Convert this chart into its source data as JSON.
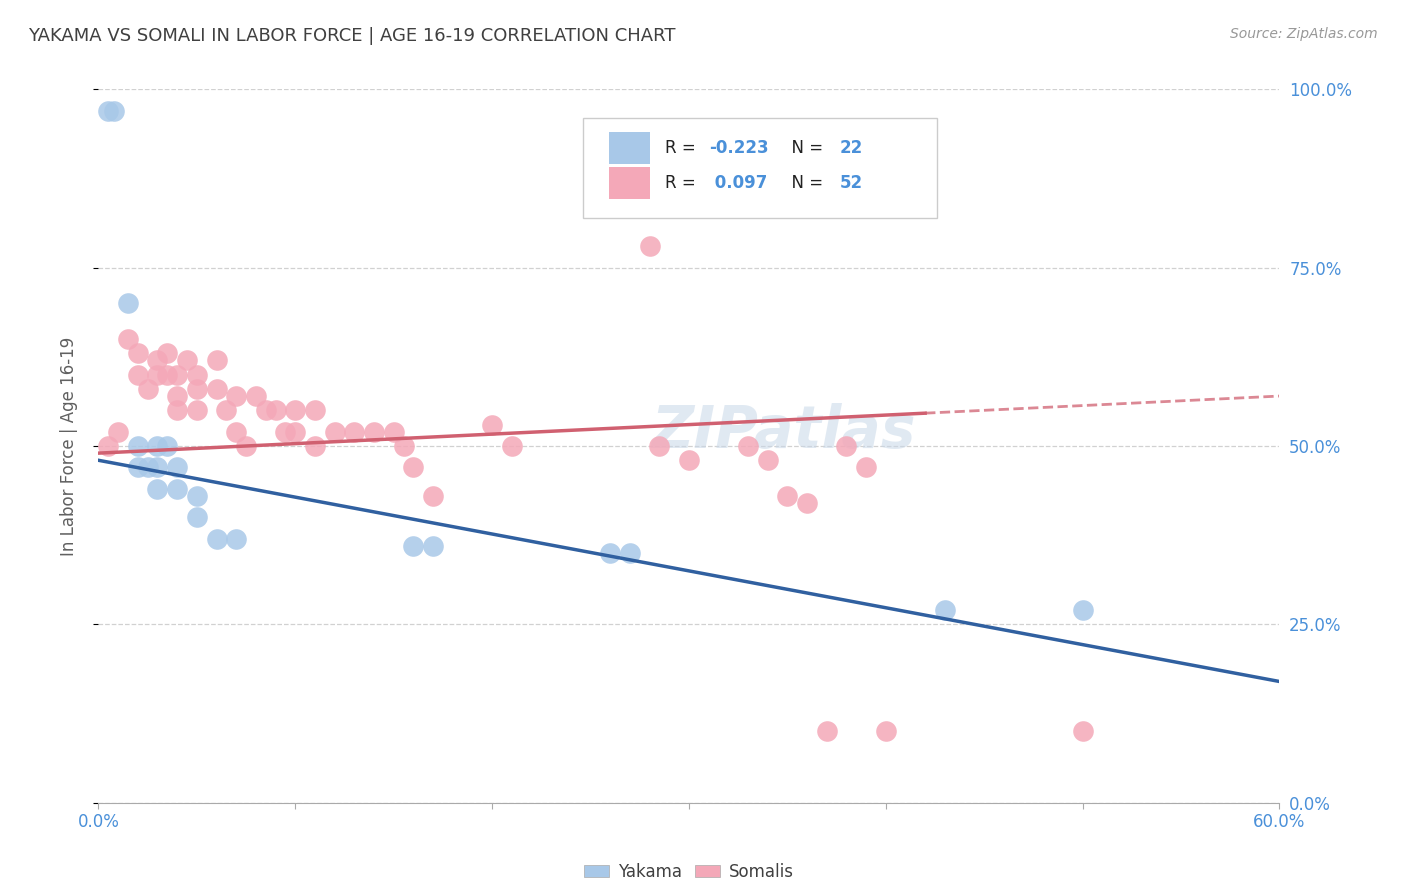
{
  "title": "YAKAMA VS SOMALI IN LABOR FORCE | AGE 16-19 CORRELATION CHART",
  "source_text": "Source: ZipAtlas.com",
  "ylabel": "In Labor Force | Age 16-19",
  "xlim": [
    0.0,
    0.6
  ],
  "ylim": [
    0.0,
    1.0
  ],
  "ytick_values": [
    0.0,
    0.25,
    0.5,
    0.75,
    1.0
  ],
  "ytick_labels": [
    "0.0%",
    "25.0%",
    "50.0%",
    "75.0%",
    "100.0%"
  ],
  "xtick_positions": [
    0.0,
    0.1,
    0.2,
    0.3,
    0.4,
    0.5,
    0.6
  ],
  "watermark": "ZIPatlas",
  "yakama_color": "#a8c8e8",
  "somali_color": "#f4a8b8",
  "trend_yakama_color": "#3060a0",
  "trend_somali_color": "#d06070",
  "background_color": "#ffffff",
  "grid_color": "#cccccc",
  "axis_label_color": "#4a90d9",
  "ylabel_color": "#606060",
  "title_color": "#404040",
  "source_color": "#999999",
  "watermark_color": "#c8d8e8",
  "legend_r_color": "#000000",
  "legend_n_color": "#4a90d9",
  "yakama_x": [
    0.005,
    0.008,
    0.015,
    0.02,
    0.02,
    0.025,
    0.03,
    0.03,
    0.03,
    0.035,
    0.04,
    0.04,
    0.05,
    0.05,
    0.06,
    0.07,
    0.16,
    0.17,
    0.26,
    0.27,
    0.43,
    0.5
  ],
  "yakama_y": [
    0.97,
    0.97,
    0.7,
    0.5,
    0.47,
    0.47,
    0.5,
    0.47,
    0.44,
    0.5,
    0.47,
    0.44,
    0.43,
    0.4,
    0.37,
    0.37,
    0.36,
    0.36,
    0.35,
    0.35,
    0.27,
    0.27
  ],
  "somali_x": [
    0.005,
    0.01,
    0.015,
    0.02,
    0.02,
    0.025,
    0.03,
    0.03,
    0.035,
    0.035,
    0.04,
    0.04,
    0.04,
    0.045,
    0.05,
    0.05,
    0.05,
    0.06,
    0.06,
    0.065,
    0.07,
    0.07,
    0.075,
    0.08,
    0.085,
    0.09,
    0.095,
    0.1,
    0.1,
    0.11,
    0.11,
    0.12,
    0.13,
    0.14,
    0.15,
    0.155,
    0.16,
    0.17,
    0.2,
    0.21,
    0.28,
    0.285,
    0.3,
    0.33,
    0.34,
    0.35,
    0.36,
    0.37,
    0.38,
    0.39,
    0.4,
    0.5
  ],
  "somali_y": [
    0.5,
    0.52,
    0.65,
    0.63,
    0.6,
    0.58,
    0.62,
    0.6,
    0.63,
    0.6,
    0.6,
    0.57,
    0.55,
    0.62,
    0.6,
    0.58,
    0.55,
    0.62,
    0.58,
    0.55,
    0.57,
    0.52,
    0.5,
    0.57,
    0.55,
    0.55,
    0.52,
    0.55,
    0.52,
    0.55,
    0.5,
    0.52,
    0.52,
    0.52,
    0.52,
    0.5,
    0.47,
    0.43,
    0.53,
    0.5,
    0.78,
    0.5,
    0.48,
    0.5,
    0.48,
    0.43,
    0.42,
    0.1,
    0.5,
    0.47,
    0.1,
    0.1
  ],
  "trend_yakama_x0": 0.0,
  "trend_yakama_y0": 0.48,
  "trend_yakama_x1": 0.6,
  "trend_yakama_y1": 0.17,
  "trend_somali_x0": 0.0,
  "trend_somali_y0": 0.49,
  "trend_somali_x1": 0.6,
  "trend_somali_y1": 0.57,
  "trend_somali_solid_end": 0.42
}
